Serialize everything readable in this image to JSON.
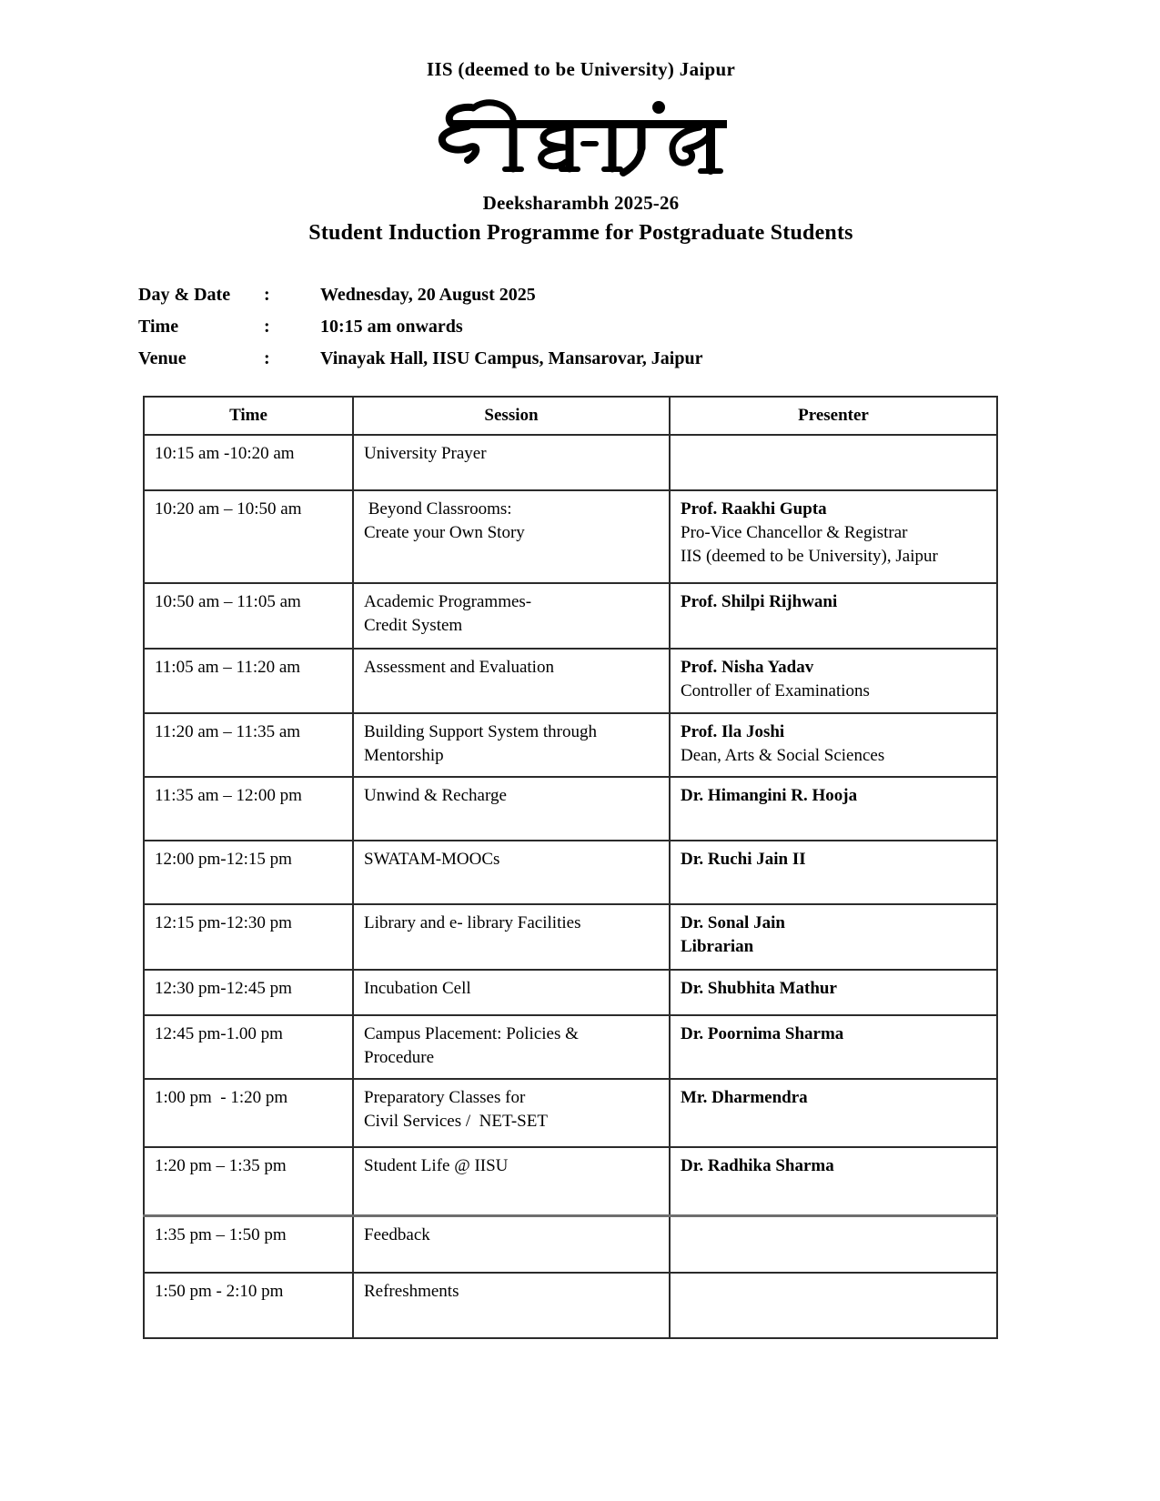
{
  "header": {
    "institution": "IIS (deemed to be University) Jaipur",
    "logo_text": "दीक्षारंभ",
    "event": "Deeksharambh 2025-26",
    "subtitle": "Student Induction Programme for Postgraduate Students"
  },
  "details": {
    "rows": [
      {
        "label": "Day & Date",
        "colon": ":",
        "value": "Wednesday, 20 August 2025"
      },
      {
        "label": "Time",
        "colon": ":",
        "value": "10:15 am onwards"
      },
      {
        "label": "Venue",
        "colon": ":",
        "value": "Vinayak Hall, IISU Campus, Mansarovar, Jaipur"
      }
    ]
  },
  "schedule": {
    "columns": [
      "Time",
      "Session",
      "Presenter"
    ],
    "rows": [
      {
        "time": "10:15 am -10:20 am",
        "session": [
          "University Prayer"
        ],
        "presenter": []
      },
      {
        "time": "10:20 am – 10:50 am",
        "session": [
          " Beyond Classrooms:",
          "Create your Own Story"
        ],
        "presenter": [
          {
            "text": "Prof. Raakhi Gupta",
            "bold": true
          },
          {
            "text": "Pro-Vice Chancellor & Registrar",
            "bold": false
          },
          {
            "text": "IIS (deemed to be University), Jaipur",
            "bold": false
          }
        ]
      },
      {
        "time": "10:50 am – 11:05 am",
        "session": [
          "Academic Programmes-",
          "Credit System"
        ],
        "presenter": [
          {
            "text": "Prof. Shilpi Rijhwani",
            "bold": true
          }
        ]
      },
      {
        "time": "11:05 am – 11:20 am",
        "session": [
          "Assessment and Evaluation"
        ],
        "presenter": [
          {
            "text": "Prof. Nisha Yadav",
            "bold": true
          },
          {
            "text": "Controller of Examinations",
            "bold": false
          }
        ]
      },
      {
        "time": "11:20 am – 11:35 am",
        "session": [
          "Building Support System through",
          "Mentorship"
        ],
        "presenter": [
          {
            "text": "Prof. Ila Joshi",
            "bold": true
          },
          {
            "text": "Dean, Arts & Social Sciences",
            "bold": false
          }
        ]
      },
      {
        "time": "11:35 am – 12:00 pm",
        "session": [
          "Unwind & Recharge"
        ],
        "presenter": [
          {
            "text": "Dr. Himangini R. Hooja",
            "bold": true
          }
        ]
      },
      {
        "time": "12:00 pm-12:15 pm",
        "session": [
          "SWATAM-MOOCs"
        ],
        "presenter": [
          {
            "text": "Dr. Ruchi Jain II",
            "bold": true
          }
        ]
      },
      {
        "time": "12:15 pm-12:30 pm",
        "session": [
          "Library and e- library Facilities"
        ],
        "presenter": [
          {
            "text": "Dr. Sonal Jain",
            "bold": true
          },
          {
            "text": "Librarian",
            "bold": true
          }
        ]
      },
      {
        "time": "12:30 pm-12:45 pm",
        "session": [
          "Incubation Cell"
        ],
        "presenter": [
          {
            "text": "Dr. Shubhita Mathur",
            "bold": true
          }
        ]
      },
      {
        "time": "12:45 pm-1.00 pm",
        "session": [
          "Campus Placement: Policies &",
          "Procedure"
        ],
        "presenter": [
          {
            "text": "Dr. Poornima Sharma",
            "bold": true
          }
        ]
      },
      {
        "time": "1:00 pm  - 1:20 pm",
        "session": [
          "Preparatory Classes for",
          "Civil Services /  NET-SET"
        ],
        "presenter": [
          {
            "text": "Mr. Dharmendra",
            "bold": true
          }
        ]
      },
      {
        "time": "1:20 pm – 1:35 pm",
        "session": [
          "Student Life @ IISU"
        ],
        "presenter": [
          {
            "text": "Dr. Radhika Sharma",
            "bold": true
          }
        ]
      },
      {
        "time": "1:35 pm – 1:50 pm",
        "session": [
          "Feedback"
        ],
        "presenter": []
      },
      {
        "time": "1:50 pm - 2:10 pm",
        "session": [
          "Refreshments"
        ],
        "presenter": []
      }
    ]
  }
}
